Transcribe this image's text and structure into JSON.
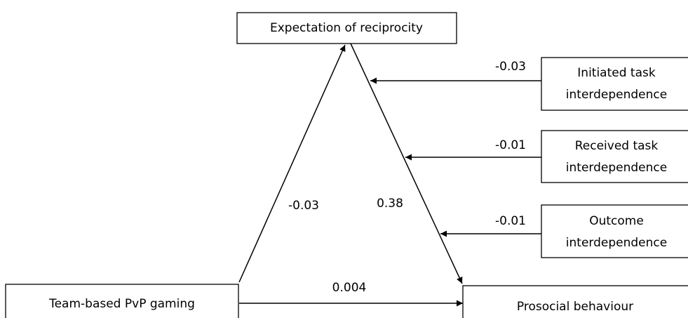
{
  "nodes": [
    {
      "lines": [
        "Expectation of reciprocity"
      ]
    },
    {
      "lines": [
        "Initiated task",
        "interdependence"
      ]
    },
    {
      "lines": [
        "Received task",
        "interdependence"
      ]
    },
    {
      "lines": [
        "Outcome",
        "interdependence"
      ]
    },
    {
      "lines": [
        "Team-based PvP gaming"
      ]
    },
    {
      "lines": [
        "Prosocial behaviour"
      ]
    }
  ],
  "edges": [
    {
      "label": "-0.03"
    },
    {
      "label": "-0.01"
    },
    {
      "label": "-0.01"
    },
    {
      "label": "-0.03"
    },
    {
      "label": "0.38"
    },
    {
      "label": "0.004"
    }
  ]
}
